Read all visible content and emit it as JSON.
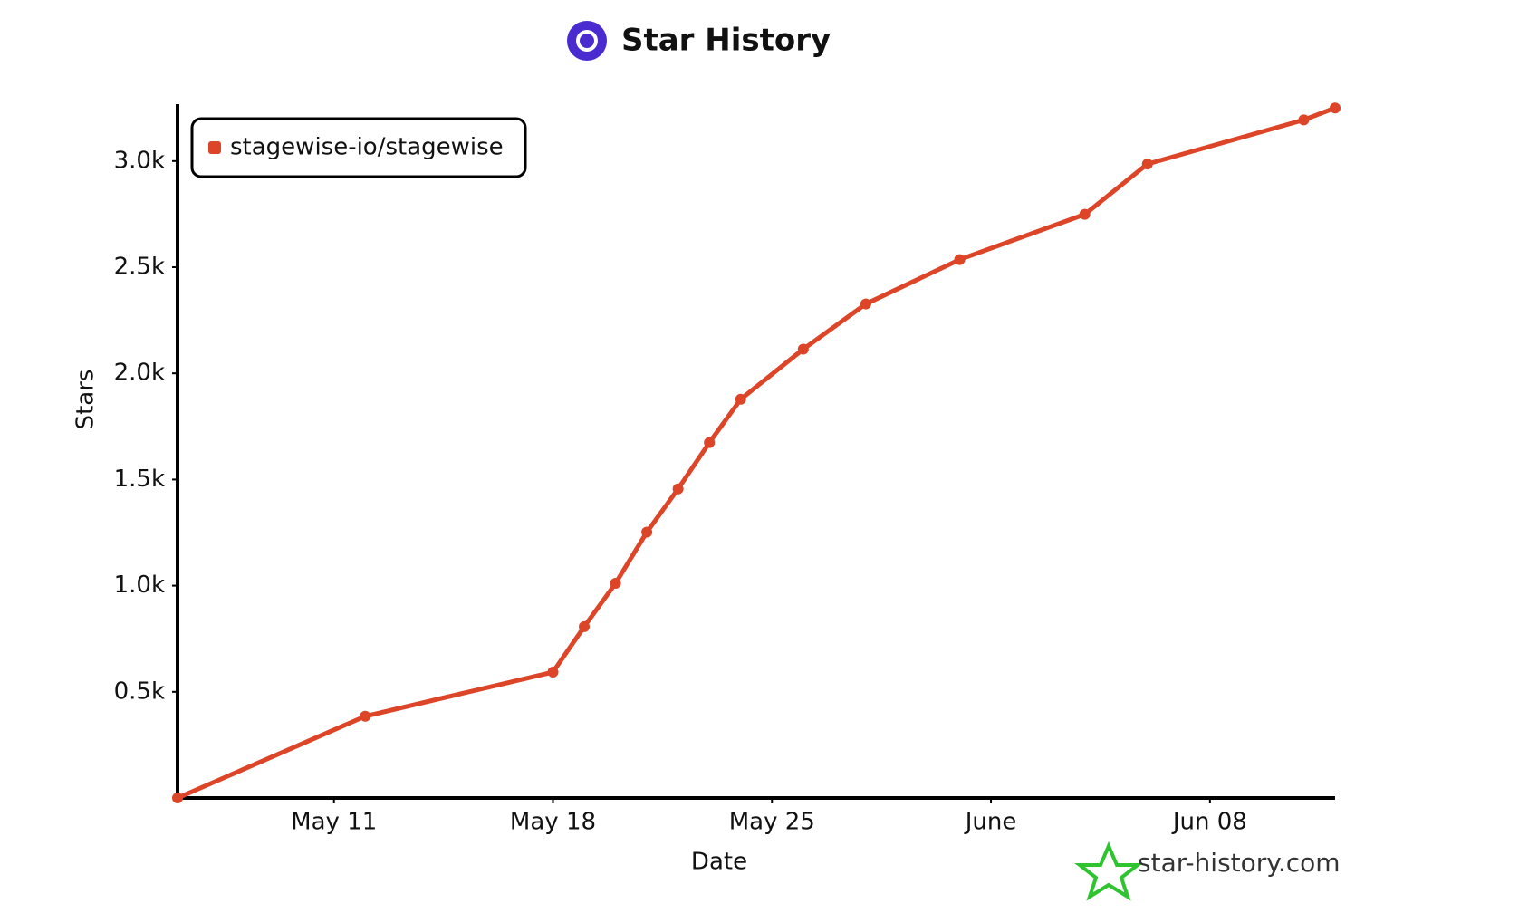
{
  "chart_data": {
    "type": "line",
    "title": "Star History",
    "x_label": "Date",
    "y_label": "Stars",
    "watermark": "star-history.com",
    "x": [
      "05-06",
      "05-12",
      "05-18",
      "05-19",
      "05-20",
      "05-21",
      "05-22",
      "05-23",
      "05-24",
      "05-26",
      "05-28",
      "05-31",
      "06-04",
      "06-06",
      "06-11",
      "06-12"
    ],
    "series": [
      {
        "name": "stagewise-io/stagewise",
        "color": "#dd4528",
        "values": [
          0,
          385,
          593,
          807,
          1011,
          1252,
          1456,
          1674,
          1878,
          2114,
          2327,
          2536,
          2749,
          2986,
          3194,
          3250
        ]
      }
    ],
    "xlim": [
      "05-06",
      "06-12"
    ],
    "xticks": [
      {
        "value": "05-11",
        "label": "May 11"
      },
      {
        "value": "05-18",
        "label": "May 18"
      },
      {
        "value": "05-25",
        "label": "May 25"
      },
      {
        "value": "06-01",
        "label": "June"
      },
      {
        "value": "06-08",
        "label": "Jun 08"
      }
    ],
    "ylim": [
      0,
      3268
    ],
    "yticks": [
      {
        "value": 500,
        "label": "0.5k"
      },
      {
        "value": 1000,
        "label": "1.0k"
      },
      {
        "value": 1500,
        "label": "1.5k"
      },
      {
        "value": 2000,
        "label": "2.0k"
      },
      {
        "value": 2500,
        "label": "2.5k"
      },
      {
        "value": 3000,
        "label": "3.0k"
      }
    ],
    "legend": "top-left",
    "grid": false
  }
}
